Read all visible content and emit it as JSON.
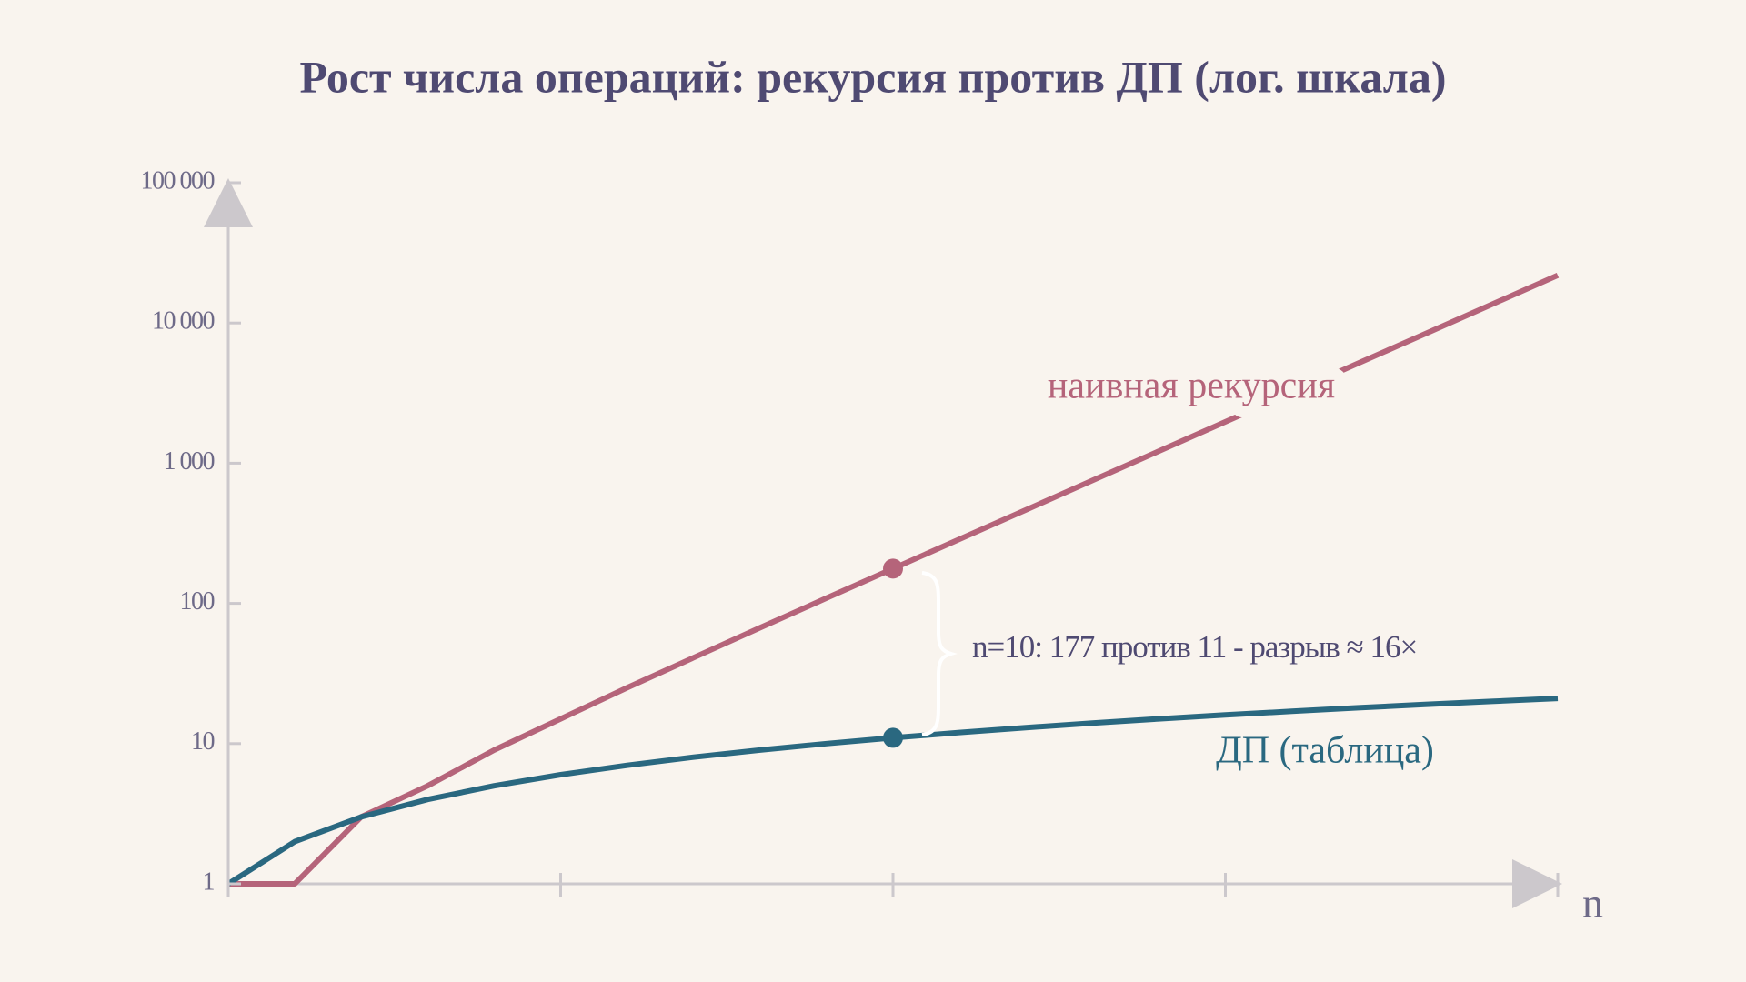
{
  "chart_data": {
    "type": "line",
    "title": "Рост числа операций: рекурсия против ДП (лог. шкала)",
    "x_label": "n",
    "x": [
      0,
      1,
      2,
      3,
      4,
      5,
      6,
      7,
      8,
      9,
      10,
      11,
      12,
      13,
      14,
      15,
      16,
      17,
      18,
      19,
      20
    ],
    "series": [
      {
        "name": "наивная рекурсия",
        "color": "#b5647a",
        "values": [
          1,
          1,
          3,
          5,
          9,
          15,
          25,
          41,
          67,
          109,
          177,
          287,
          465,
          753,
          1219,
          1973,
          3193,
          5167,
          8361,
          13529,
          21891
        ]
      },
      {
        "name": "ДП (таблица)",
        "color": "#2a6880",
        "values": [
          1,
          2,
          3,
          4,
          5,
          6,
          7,
          8,
          9,
          10,
          11,
          12,
          13,
          14,
          15,
          16,
          17,
          18,
          19,
          20,
          21
        ]
      }
    ],
    "xlim": [
      0,
      20
    ],
    "xticks": [
      0,
      5,
      10,
      15,
      20
    ],
    "ylim": [
      1,
      100000
    ],
    "yticks": [
      1,
      10,
      100,
      {
        "value": 1000,
        "label": "1 000"
      },
      {
        "value": 10000,
        "label": "10 000"
      },
      {
        "value": 100000,
        "label": "100 000"
      }
    ],
    "log_y": true,
    "highlight_x": 10,
    "annotation": "n=10: 177 против 11 - разрыв ≈ 16×"
  }
}
